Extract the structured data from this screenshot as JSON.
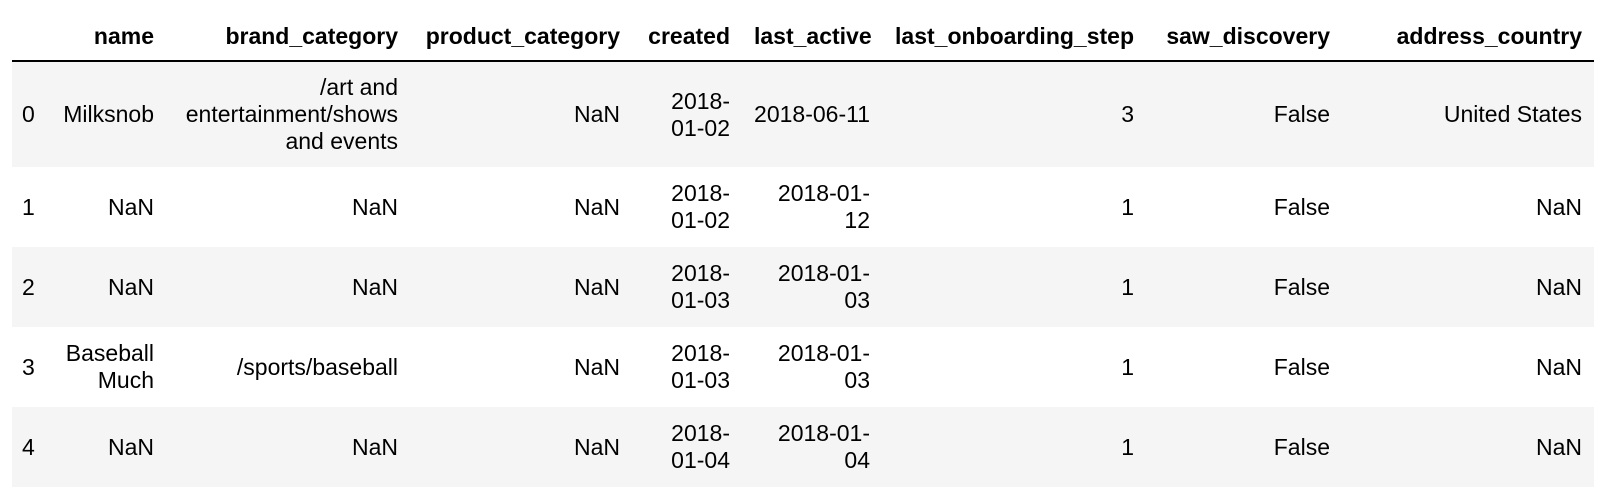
{
  "table": {
    "index_header": "",
    "columns": [
      "name",
      "brand_category",
      "product_category",
      "created",
      "last_active",
      "last_onboarding_step",
      "saw_discovery",
      "address_country"
    ],
    "rows": [
      {
        "index": "0",
        "cells": [
          "Milksnob",
          "/art and entertainment/shows and events",
          "NaN",
          "2018-01-02",
          "2018-06-11",
          "3",
          "False",
          "United States"
        ]
      },
      {
        "index": "1",
        "cells": [
          "NaN",
          "NaN",
          "NaN",
          "2018-01-02",
          "2018-01-12",
          "1",
          "False",
          "NaN"
        ]
      },
      {
        "index": "2",
        "cells": [
          "NaN",
          "NaN",
          "NaN",
          "2018-01-03",
          "2018-01-03",
          "1",
          "False",
          "NaN"
        ]
      },
      {
        "index": "3",
        "cells": [
          "Baseball Much",
          "/sports/baseball",
          "NaN",
          "2018-01-03",
          "2018-01-03",
          "1",
          "False",
          "NaN"
        ]
      },
      {
        "index": "4",
        "cells": [
          "NaN",
          "NaN",
          "NaN",
          "2018-01-04",
          "2018-01-04",
          "1",
          "False",
          "NaN"
        ]
      }
    ]
  }
}
